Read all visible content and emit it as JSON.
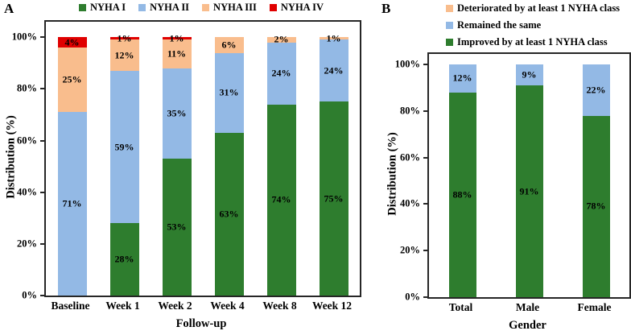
{
  "panels": {
    "a": {
      "letter": "A",
      "xlabel": "Follow-up",
      "ylabel": "Distribution (%)"
    },
    "b": {
      "letter": "B",
      "xlabel": "Gender",
      "ylabel": "Distribution (%)"
    }
  },
  "colors": {
    "green": "#2e7d2e",
    "blue": "#93b9e5",
    "orange": "#f9bd8d",
    "red": "#e00000",
    "axis": "#262626"
  },
  "chart_data": [
    {
      "panel": "A",
      "type": "bar",
      "stacked": true,
      "title": "",
      "categories": [
        "Baseline",
        "Week 1",
        "Week 2",
        "Week 4",
        "Week 8",
        "Week 12"
      ],
      "series": [
        {
          "name": "NYHA I",
          "color": "#2e7d2e",
          "values": [
            0,
            28,
            53,
            63,
            74,
            75
          ]
        },
        {
          "name": "NYHA II",
          "color": "#93b9e5",
          "values": [
            71,
            59,
            35,
            31,
            24,
            24
          ]
        },
        {
          "name": "NYHA III",
          "color": "#f9bd8d",
          "values": [
            25,
            12,
            11,
            6,
            2,
            1
          ]
        },
        {
          "name": "NYHA IV",
          "color": "#e00000",
          "values": [
            4,
            1,
            1,
            0,
            0,
            0
          ]
        }
      ],
      "data_labels": [
        [
          "",
          "28%",
          "53%",
          "63%",
          "74%",
          "75%"
        ],
        [
          "71%",
          "59%",
          "35%",
          "31%",
          "24%",
          "24%"
        ],
        [
          "25%",
          "12%",
          "11%",
          "6%",
          "2%",
          "1%"
        ],
        [
          "4%",
          "1%",
          "1%",
          "",
          "",
          ""
        ]
      ],
      "legend": [
        {
          "label": "NYHA I",
          "color": "#2e7d2e"
        },
        {
          "label": "NYHA II",
          "color": "#93b9e5"
        },
        {
          "label": "NYHA III",
          "color": "#f9bd8d"
        },
        {
          "label": "NYHA IV",
          "color": "#e00000"
        }
      ],
      "legend_position": "top-center-horizontal",
      "xlabel": "Follow-up",
      "ylabel": "Distribution (%)",
      "ylim": [
        0,
        100
      ],
      "ytick_values": [
        0,
        20,
        40,
        60,
        80,
        100
      ],
      "ytick_labels": [
        "0%",
        "20%",
        "40%",
        "60%",
        "80%",
        "100%"
      ],
      "grid": false
    },
    {
      "panel": "B",
      "type": "bar",
      "stacked": true,
      "title": "",
      "categories": [
        "Total",
        "Male",
        "Female"
      ],
      "series": [
        {
          "name": "Improved by at least 1 NYHA class",
          "color": "#2e7d2e",
          "values": [
            88,
            91,
            78
          ]
        },
        {
          "name": "Remained the same",
          "color": "#93b9e5",
          "values": [
            12,
            9,
            22
          ]
        },
        {
          "name": "Deteriorated by at least 1 NYHA class",
          "color": "#f9bd8d",
          "values": [
            0,
            0,
            0
          ]
        }
      ],
      "data_labels": [
        [
          "88%",
          "91%",
          "78%"
        ],
        [
          "12%",
          "9%",
          "22%"
        ],
        [
          "",
          "",
          ""
        ]
      ],
      "legend": [
        {
          "label": "Deteriorated by at least 1 NYHA class",
          "color": "#f9bd8d"
        },
        {
          "label": "Remained the same",
          "color": "#93b9e5"
        },
        {
          "label": "Improved by at least 1 NYHA class",
          "color": "#2e7d2e"
        }
      ],
      "legend_position": "top-left-vertical",
      "xlabel": "Gender",
      "ylabel": "Distribution (%)",
      "ylim": [
        0,
        100
      ],
      "ytick_values": [
        0,
        20,
        40,
        60,
        80,
        100
      ],
      "ytick_labels": [
        "0%",
        "20%",
        "40%",
        "60%",
        "80%",
        "100%"
      ],
      "grid": false
    }
  ]
}
